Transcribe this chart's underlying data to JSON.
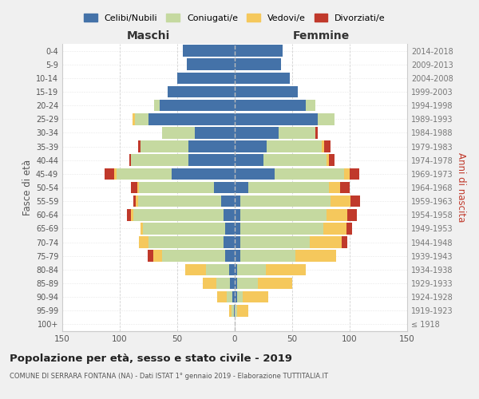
{
  "age_groups": [
    "100+",
    "95-99",
    "90-94",
    "85-89",
    "80-84",
    "75-79",
    "70-74",
    "65-69",
    "60-64",
    "55-59",
    "50-54",
    "45-49",
    "40-44",
    "35-39",
    "30-34",
    "25-29",
    "20-24",
    "15-19",
    "10-14",
    "5-9",
    "0-4"
  ],
  "birth_years": [
    "≤ 1918",
    "1919-1923",
    "1924-1928",
    "1929-1933",
    "1934-1938",
    "1939-1943",
    "1944-1948",
    "1949-1953",
    "1954-1958",
    "1959-1963",
    "1964-1968",
    "1969-1973",
    "1974-1978",
    "1979-1983",
    "1984-1988",
    "1989-1993",
    "1994-1998",
    "1999-2003",
    "2004-2008",
    "2009-2013",
    "2014-2018"
  ],
  "maschi": {
    "celibi": [
      0,
      1,
      2,
      4,
      5,
      8,
      10,
      8,
      10,
      12,
      18,
      55,
      40,
      40,
      35,
      75,
      65,
      58,
      50,
      42,
      45
    ],
    "coniugati": [
      0,
      2,
      5,
      12,
      20,
      55,
      65,
      72,
      78,
      72,
      65,
      48,
      50,
      42,
      28,
      12,
      5,
      0,
      0,
      0,
      0
    ],
    "vedovi": [
      0,
      2,
      8,
      12,
      18,
      8,
      8,
      2,
      2,
      2,
      2,
      2,
      0,
      0,
      0,
      2,
      0,
      0,
      0,
      0,
      0
    ],
    "divorziati": [
      0,
      0,
      0,
      0,
      0,
      5,
      0,
      0,
      4,
      2,
      5,
      8,
      2,
      2,
      0,
      0,
      0,
      0,
      0,
      0,
      0
    ]
  },
  "femmine": {
    "nubili": [
      0,
      0,
      2,
      2,
      2,
      5,
      5,
      5,
      5,
      5,
      12,
      35,
      25,
      28,
      38,
      72,
      62,
      55,
      48,
      40,
      42
    ],
    "coniugate": [
      0,
      2,
      5,
      18,
      25,
      48,
      60,
      72,
      75,
      78,
      70,
      60,
      55,
      48,
      32,
      15,
      8,
      0,
      0,
      0,
      0
    ],
    "vedove": [
      0,
      10,
      22,
      30,
      35,
      35,
      28,
      20,
      18,
      18,
      10,
      5,
      2,
      2,
      0,
      0,
      0,
      0,
      0,
      0,
      0
    ],
    "divorziate": [
      0,
      0,
      0,
      0,
      0,
      0,
      5,
      5,
      8,
      8,
      8,
      8,
      5,
      5,
      2,
      0,
      0,
      0,
      0,
      0,
      0
    ]
  },
  "colors": {
    "celibi": "#4472a8",
    "coniugati": "#c5d9a0",
    "vedovi": "#f5c85c",
    "divorziati": "#c0392b"
  },
  "title": "Popolazione per età, sesso e stato civile - 2019",
  "subtitle": "COMUNE DI SERRARA FONTANA (NA) - Dati ISTAT 1° gennaio 2019 - Elaborazione TUTTITALIA.IT",
  "xlabel_left": "Maschi",
  "xlabel_right": "Femmine",
  "ylabel_left": "Fasce di età",
  "ylabel_right": "Anni di nascita",
  "xlim": 150,
  "bg_color": "#f0f0f0",
  "plot_bg_color": "#ffffff",
  "legend_labels": [
    "Celibi/Nubili",
    "Coniugati/e",
    "Vedovi/e",
    "Divorziati/e"
  ]
}
